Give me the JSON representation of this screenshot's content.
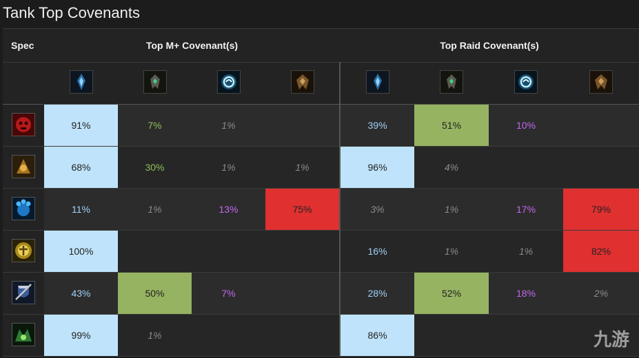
{
  "page_title": "Tank Top Covenants",
  "headers": {
    "spec": "Spec",
    "mplus": "Top M+ Covenant(s)",
    "raid": "Top Raid Covenant(s)"
  },
  "covenant_icons": [
    "kyrian-icon",
    "necrolord-icon",
    "night-fae-icon",
    "venthyr-icon"
  ],
  "colors": {
    "blue_bg": "#bfe3fb",
    "green_bg": "#96b361",
    "red_bg": "#e03030",
    "blue_text": "#9fd0f7",
    "green_text": "#8fbf5a",
    "purple_text": "#c268f0",
    "gray_text": "#8a8a8a",
    "dark_text": "#222222"
  },
  "rows": [
    {
      "spec_icon": "blood-death-knight-icon",
      "cells": [
        {
          "v": "91%",
          "style": "blue"
        },
        {
          "v": "7%",
          "style": "green-text"
        },
        {
          "v": "1%",
          "style": "gray"
        },
        {
          "v": "",
          "style": "none"
        },
        {
          "v": "39%",
          "style": "blue-text"
        },
        {
          "v": "51%",
          "style": "green"
        },
        {
          "v": "10%",
          "style": "purple-text"
        },
        {
          "v": "",
          "style": "none"
        }
      ]
    },
    {
      "spec_icon": "brewmaster-monk-icon",
      "cells": [
        {
          "v": "68%",
          "style": "blue"
        },
        {
          "v": "30%",
          "style": "green-text"
        },
        {
          "v": "1%",
          "style": "gray"
        },
        {
          "v": "1%",
          "style": "gray"
        },
        {
          "v": "96%",
          "style": "blue"
        },
        {
          "v": "4%",
          "style": "gray"
        },
        {
          "v": "",
          "style": "none"
        },
        {
          "v": "",
          "style": "none"
        }
      ]
    },
    {
      "spec_icon": "guardian-druid-icon",
      "cells": [
        {
          "v": "11%",
          "style": "blue-text"
        },
        {
          "v": "1%",
          "style": "gray"
        },
        {
          "v": "13%",
          "style": "purple-text"
        },
        {
          "v": "75%",
          "style": "red"
        },
        {
          "v": "3%",
          "style": "gray"
        },
        {
          "v": "1%",
          "style": "gray"
        },
        {
          "v": "17%",
          "style": "purple-text"
        },
        {
          "v": "79%",
          "style": "red"
        }
      ]
    },
    {
      "spec_icon": "protection-paladin-icon",
      "cells": [
        {
          "v": "100%",
          "style": "blue"
        },
        {
          "v": "",
          "style": "none"
        },
        {
          "v": "",
          "style": "none"
        },
        {
          "v": "",
          "style": "none"
        },
        {
          "v": "16%",
          "style": "blue-text"
        },
        {
          "v": "1%",
          "style": "gray"
        },
        {
          "v": "1%",
          "style": "gray"
        },
        {
          "v": "82%",
          "style": "red"
        }
      ]
    },
    {
      "spec_icon": "protection-warrior-icon",
      "cells": [
        {
          "v": "43%",
          "style": "blue-text"
        },
        {
          "v": "50%",
          "style": "green"
        },
        {
          "v": "7%",
          "style": "purple-text"
        },
        {
          "v": "",
          "style": "none"
        },
        {
          "v": "28%",
          "style": "blue-text"
        },
        {
          "v": "52%",
          "style": "green"
        },
        {
          "v": "18%",
          "style": "purple-text"
        },
        {
          "v": "2%",
          "style": "gray"
        }
      ]
    },
    {
      "spec_icon": "vengeance-demon-hunter-icon",
      "cells": [
        {
          "v": "99%",
          "style": "blue"
        },
        {
          "v": "1%",
          "style": "gray"
        },
        {
          "v": "",
          "style": "none"
        },
        {
          "v": "",
          "style": "none"
        },
        {
          "v": "86%",
          "style": "blue"
        },
        {
          "v": "",
          "style": "none"
        },
        {
          "v": "",
          "style": "none"
        },
        {
          "v": "",
          "style": "none"
        }
      ]
    }
  ],
  "watermark": "九游"
}
